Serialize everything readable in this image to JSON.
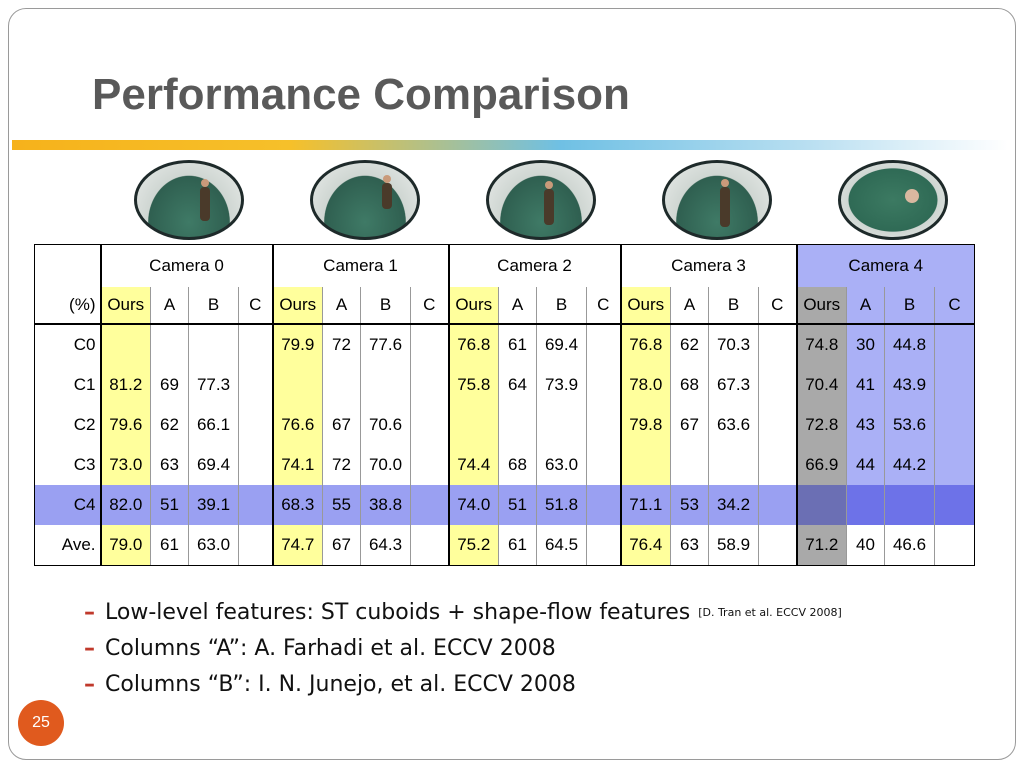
{
  "title": "Performance Comparison",
  "cameras": [
    "Camera 0",
    "Camera 1",
    "Camera 2",
    "Camera 3",
    "Camera 4"
  ],
  "table": {
    "corner_label": "(%)",
    "subheaders": [
      "Ours",
      "A",
      "B",
      "C"
    ],
    "rows": [
      {
        "label": "C0",
        "cells": [
          "",
          "",
          "",
          "",
          "79.9",
          "72",
          "77.6",
          "",
          "76.8",
          "61",
          "69.4",
          "",
          "76.8",
          "62",
          "70.3",
          "",
          "74.8",
          "30",
          "44.8",
          ""
        ]
      },
      {
        "label": "C1",
        "cells": [
          "81.2",
          "69",
          "77.3",
          "",
          "",
          "",
          "",
          "",
          "75.8",
          "64",
          "73.9",
          "",
          "78.0",
          "68",
          "67.3",
          "",
          "70.4",
          "41",
          "43.9",
          ""
        ]
      },
      {
        "label": "C2",
        "cells": [
          "79.6",
          "62",
          "66.1",
          "",
          "76.6",
          "67",
          "70.6",
          "",
          "",
          "",
          "",
          "",
          "79.8",
          "67",
          "63.6",
          "",
          "72.8",
          "43",
          "53.6",
          ""
        ]
      },
      {
        "label": "C3",
        "cells": [
          "73.0",
          "63",
          "69.4",
          "",
          "74.1",
          "72",
          "70.0",
          "",
          "74.4",
          "68",
          "63.0",
          "",
          "",
          "",
          "",
          "",
          "66.9",
          "44",
          "44.2",
          ""
        ]
      },
      {
        "label": "C4",
        "cells": [
          "82.0",
          "51",
          "39.1",
          "",
          "68.3",
          "55",
          "38.8",
          "",
          "74.0",
          "51",
          "51.8",
          "",
          "71.1",
          "53",
          "34.2",
          "",
          "",
          "",
          "",
          ""
        ]
      },
      {
        "label": "Ave.",
        "cells": [
          "79.0",
          "61",
          "63.0",
          "",
          "74.7",
          "67",
          "64.3",
          "",
          "75.2",
          "61",
          "64.5",
          "",
          "76.4",
          "63",
          "58.9",
          "",
          "71.2",
          "40",
          "46.6",
          ""
        ]
      }
    ]
  },
  "bullets": [
    {
      "text": "Low-level features: ST cuboids + shape-flow features",
      "ref": "[D. Tran et al. ECCV 2008]"
    },
    {
      "text": "Columns “A”: A. Farhadi et al. ECCV 2008",
      "ref": ""
    },
    {
      "text": "Columns “B”: I. N. Junejo, et al. ECCV 2008",
      "ref": ""
    }
  ],
  "page_number": "25",
  "colors": {
    "ours_highlight": "#ffff9c",
    "camera4_highlight": "#aab0f6",
    "accent_bar_start": "#f6b21b",
    "page_badge": "#e05a1e"
  }
}
